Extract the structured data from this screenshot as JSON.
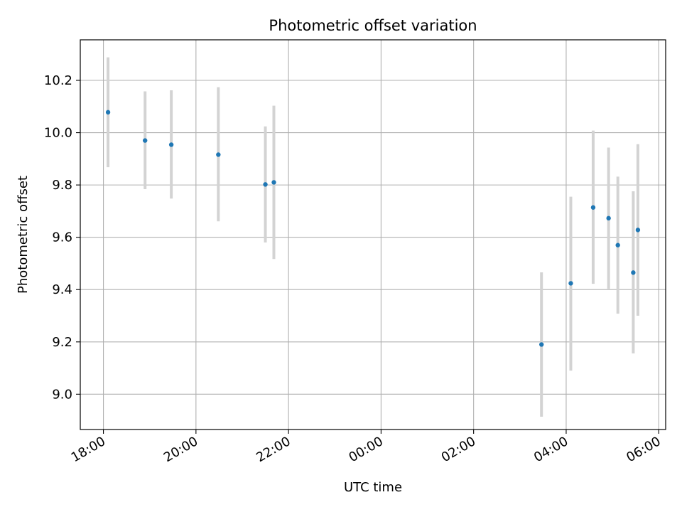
{
  "chart_data": {
    "type": "scatter",
    "title": "Photometric offset variation",
    "xlabel": "UTC time",
    "ylabel": "Photometric offset",
    "x_is_time": true,
    "x_unit": "hours since 18:00 UTC (day 1), crossing midnight",
    "xlim": [
      "17:30",
      "06:09"
    ],
    "ylim": [
      8.865,
      10.355
    ],
    "x_ticks": [
      "18:00",
      "20:00",
      "22:00",
      "00:00",
      "02:00",
      "04:00",
      "06:00"
    ],
    "y_ticks": [
      9.0,
      9.2,
      9.4,
      9.6,
      9.8,
      10.0,
      10.2
    ],
    "grid": true,
    "point_color": "#1f77b4",
    "errorbar_color": "#d3d3d3",
    "series": [
      {
        "points": [
          {
            "time": "18:06",
            "y": 10.078,
            "low": 9.868,
            "high": 10.288
          },
          {
            "time": "18:54",
            "y": 9.97,
            "low": 9.784,
            "high": 10.158
          },
          {
            "time": "19:28",
            "y": 9.954,
            "low": 9.748,
            "high": 10.162
          },
          {
            "time": "20:29",
            "y": 9.916,
            "low": 9.661,
            "high": 10.174
          },
          {
            "time": "21:30",
            "y": 9.802,
            "low": 9.58,
            "high": 10.024
          },
          {
            "time": "21:41",
            "y": 9.81,
            "low": 9.517,
            "high": 10.103
          },
          {
            "time": "03:28",
            "y": 9.19,
            "low": 8.914,
            "high": 9.466
          },
          {
            "time": "04:06",
            "y": 9.424,
            "low": 9.09,
            "high": 9.755
          },
          {
            "time": "04:35",
            "y": 9.714,
            "low": 9.422,
            "high": 10.008
          },
          {
            "time": "04:55",
            "y": 9.673,
            "low": 9.403,
            "high": 9.943
          },
          {
            "time": "05:07",
            "y": 9.57,
            "low": 9.308,
            "high": 9.832
          },
          {
            "time": "05:27",
            "y": 9.465,
            "low": 9.156,
            "high": 9.776
          },
          {
            "time": "05:33",
            "y": 9.628,
            "low": 9.3,
            "high": 9.956
          }
        ]
      }
    ]
  }
}
